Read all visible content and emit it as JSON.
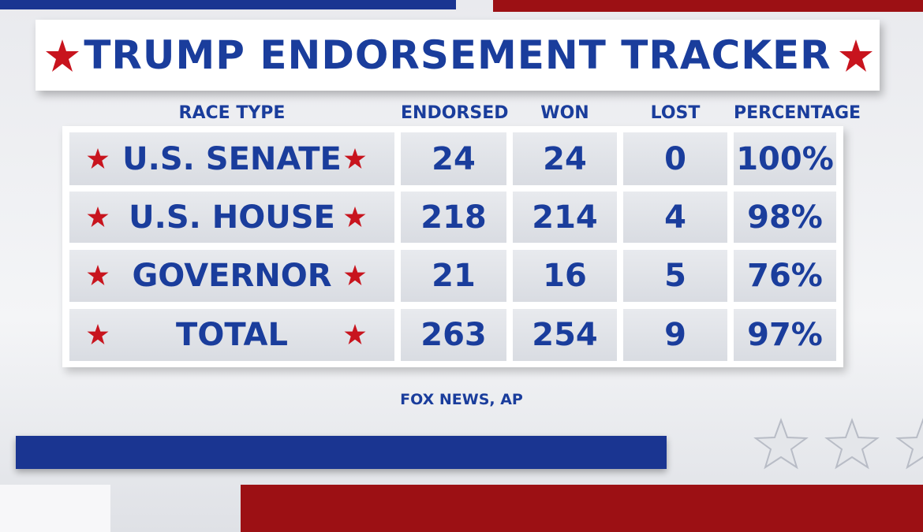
{
  "header": {
    "title": "TRUMP ENDORSEMENT TRACKER"
  },
  "table": {
    "columns": [
      "RACE TYPE",
      "ENDORSED",
      "WON",
      "LOST",
      "PERCENTAGE"
    ],
    "rows": [
      [
        "U.S. SENATE",
        "24",
        "24",
        "0",
        "100%"
      ],
      [
        "U.S. HOUSE",
        "218",
        "214",
        "4",
        "98%"
      ],
      [
        "GOVERNOR",
        "21",
        "16",
        "5",
        "76%"
      ],
      [
        "TOTAL",
        "263",
        "254",
        "9",
        "97%"
      ]
    ]
  },
  "source": "FOX NEWS, AP"
}
